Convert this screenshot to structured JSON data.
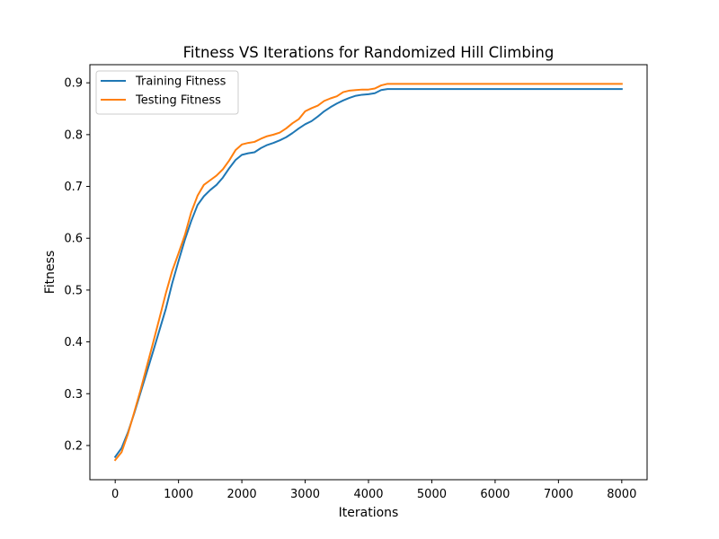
{
  "chart_data": {
    "type": "line",
    "title": "Fitness VS Iterations for Randomized Hill Climbing",
    "xlabel": "Iterations",
    "ylabel": "Fitness",
    "xlim": [
      -400,
      8400
    ],
    "ylim": [
      0.134,
      0.935
    ],
    "xticks": [
      0,
      1000,
      2000,
      3000,
      4000,
      5000,
      6000,
      7000,
      8000
    ],
    "yticks": [
      0.2,
      0.3,
      0.4,
      0.5,
      0.6,
      0.7,
      0.8,
      0.9
    ],
    "xtick_labels": [
      "0",
      "1000",
      "2000",
      "3000",
      "4000",
      "5000",
      "6000",
      "7000",
      "8000"
    ],
    "ytick_labels": [
      "0.2",
      "0.3",
      "0.4",
      "0.5",
      "0.6",
      "0.7",
      "0.8",
      "0.9"
    ],
    "grid": false,
    "legend_position": "upper-left",
    "series": [
      {
        "name": "Training Fitness",
        "color": "#1f77b4",
        "x": [
          0,
          100,
          200,
          300,
          400,
          500,
          600,
          700,
          800,
          900,
          1000,
          1100,
          1200,
          1300,
          1400,
          1500,
          1600,
          1700,
          1800,
          1900,
          2000,
          2100,
          2200,
          2300,
          2400,
          2500,
          2600,
          2700,
          2800,
          2900,
          3000,
          3100,
          3200,
          3300,
          3400,
          3500,
          3600,
          3700,
          3800,
          3900,
          4000,
          4100,
          4200,
          4300,
          4400,
          4600,
          5000,
          6000,
          7000,
          8000
        ],
        "y": [
          0.178,
          0.195,
          0.225,
          0.262,
          0.302,
          0.342,
          0.382,
          0.423,
          0.464,
          0.513,
          0.556,
          0.597,
          0.633,
          0.664,
          0.681,
          0.693,
          0.703,
          0.717,
          0.735,
          0.751,
          0.761,
          0.764,
          0.766,
          0.774,
          0.78,
          0.784,
          0.789,
          0.795,
          0.803,
          0.812,
          0.82,
          0.826,
          0.835,
          0.845,
          0.853,
          0.86,
          0.866,
          0.871,
          0.875,
          0.877,
          0.878,
          0.88,
          0.886,
          0.888,
          0.888,
          0.888,
          0.888,
          0.888,
          0.888,
          0.888
        ]
      },
      {
        "name": "Testing Fitness",
        "color": "#ff7f0e",
        "x": [
          0,
          100,
          200,
          300,
          400,
          500,
          600,
          700,
          800,
          900,
          1000,
          1100,
          1200,
          1300,
          1400,
          1500,
          1600,
          1700,
          1800,
          1900,
          2000,
          2100,
          2200,
          2300,
          2400,
          2500,
          2600,
          2700,
          2800,
          2900,
          3000,
          3100,
          3200,
          3300,
          3400,
          3500,
          3600,
          3700,
          3800,
          3900,
          4000,
          4100,
          4200,
          4300,
          4400,
          4600,
          5000,
          6000,
          7000,
          8000
        ],
        "y": [
          0.172,
          0.187,
          0.222,
          0.264,
          0.307,
          0.353,
          0.399,
          0.446,
          0.494,
          0.537,
          0.571,
          0.606,
          0.65,
          0.682,
          0.703,
          0.712,
          0.721,
          0.733,
          0.75,
          0.77,
          0.781,
          0.784,
          0.786,
          0.792,
          0.797,
          0.8,
          0.804,
          0.812,
          0.822,
          0.83,
          0.845,
          0.851,
          0.856,
          0.865,
          0.87,
          0.874,
          0.882,
          0.885,
          0.886,
          0.887,
          0.887,
          0.889,
          0.895,
          0.898,
          0.898,
          0.898,
          0.898,
          0.898,
          0.898,
          0.898
        ]
      }
    ]
  }
}
